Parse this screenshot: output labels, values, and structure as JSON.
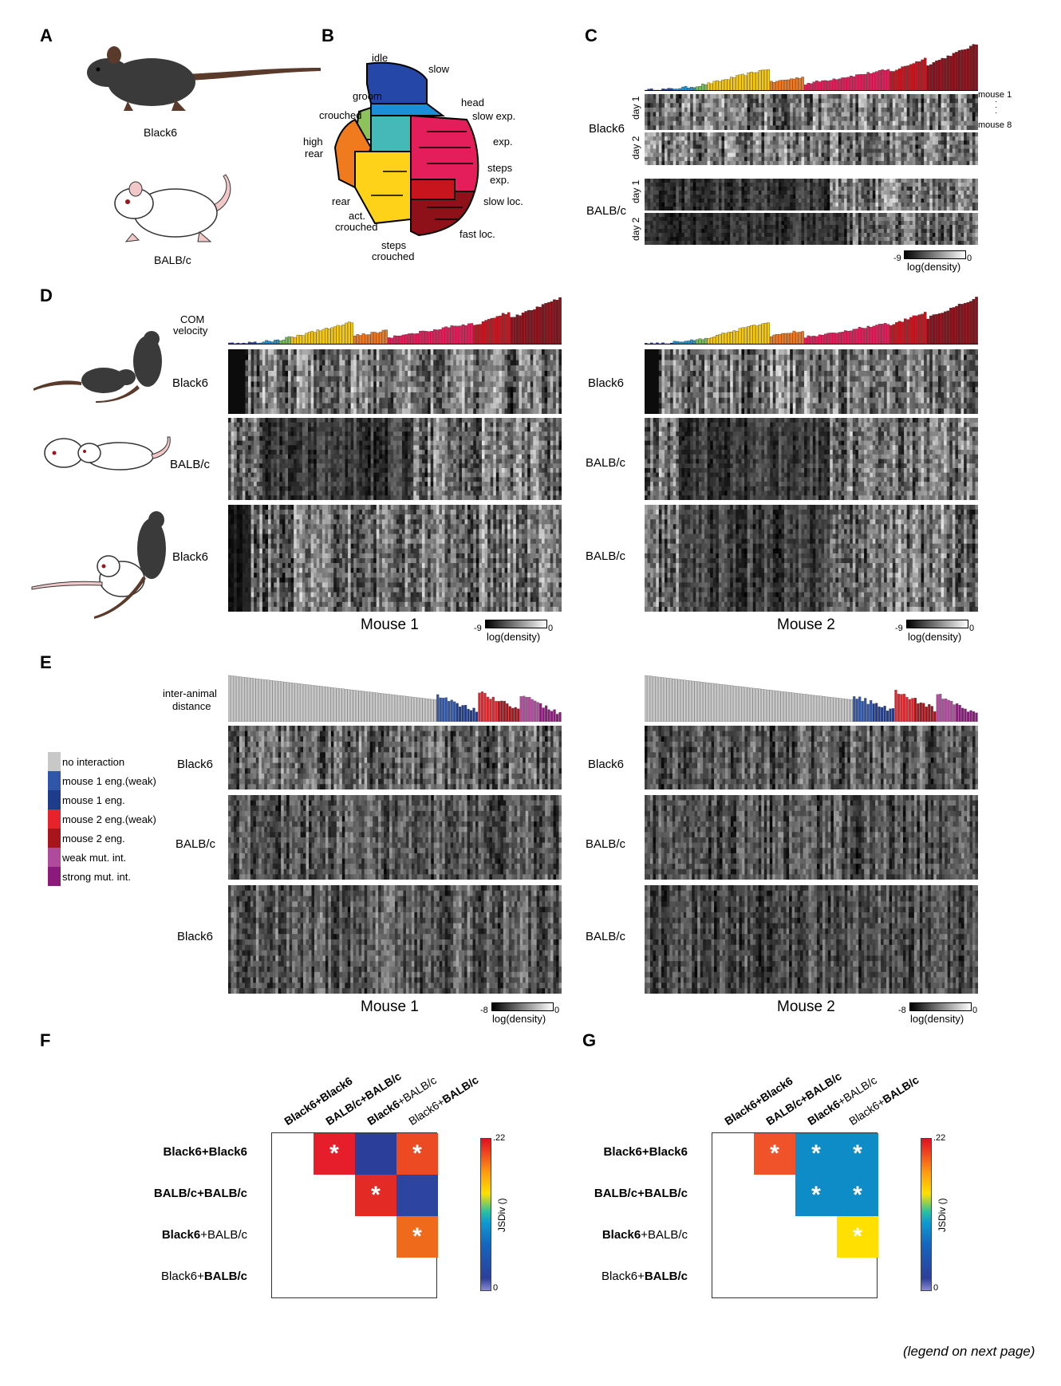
{
  "panels": {
    "A": {
      "letter": "A",
      "top_label": "Black6",
      "bottom_label": "BALB/c"
    },
    "B": {
      "letter": "B",
      "labels": [
        "idle",
        "slow",
        "groom",
        "head",
        "crouched",
        "slow exp.",
        "high",
        "rear",
        "exp.",
        "steps",
        "exp.",
        "slow loc.",
        "rear",
        "act.",
        "crouched",
        "fast loc.",
        "steps",
        "crouched"
      ]
    },
    "C": {
      "letter": "C",
      "strain1": "Black6",
      "strain2": "BALB/c",
      "day1": "day 1",
      "day2": "day 2",
      "mouse_first": "mouse 1",
      "mouse_last": "mouse 8",
      "dots": "·",
      "cbar_min": "-9",
      "cbar_max": "0",
      "cbar_label": "log(density)"
    },
    "D": {
      "letter": "D",
      "com_label_1": "COM",
      "com_label_2": "velocity",
      "rows_left": [
        "Black6",
        "BALB/c",
        "Black6"
      ],
      "rows_right": [
        "Black6",
        "BALB/c",
        "BALB/c"
      ],
      "title_left": "Mouse 1",
      "title_right": "Mouse 2",
      "cbar_min": "-9",
      "cbar_max": "0",
      "cbar_label": "log(density)"
    },
    "E": {
      "letter": "E",
      "dist_label_1": "inter-animal",
      "dist_label_2": "distance",
      "rows_left": [
        "Black6",
        "BALB/c",
        "Black6"
      ],
      "rows_right": [
        "Black6",
        "BALB/c",
        "BALB/c"
      ],
      "title_left": "Mouse 1",
      "title_right": "Mouse 2",
      "cbar_min": "-8",
      "cbar_max": "0",
      "cbar_label": "log(density)",
      "legend": [
        {
          "label": "no interaction",
          "color": "#c8c8c8"
        },
        {
          "label": "mouse 1 eng.(weak)",
          "color": "#2f56a8"
        },
        {
          "label": "mouse 1 eng.",
          "color": "#1f3b8c"
        },
        {
          "label": "mouse 2 eng.(weak)",
          "color": "#e8222a"
        },
        {
          "label": "mouse 2 eng.",
          "color": "#a8141c"
        },
        {
          "label": "weak mut. int.",
          "color": "#b04a9c"
        },
        {
          "label": "strong mut. int.",
          "color": "#8c1a7c"
        }
      ]
    },
    "F": {
      "letter": "F",
      "cbar_max": ".22",
      "cbar_min": "0",
      "cbar_label": "JSDiv ()",
      "cells": [
        {
          "row": 0,
          "col": 1,
          "color": "#e61e2c",
          "star": "*"
        },
        {
          "row": 0,
          "col": 2,
          "color": "#2b3f9a",
          "star": ""
        },
        {
          "row": 0,
          "col": 3,
          "color": "#ec4a22",
          "star": "*"
        },
        {
          "row": 1,
          "col": 2,
          "color": "#e32a24",
          "star": "*"
        },
        {
          "row": 1,
          "col": 3,
          "color": "#2d45a0",
          "star": ""
        },
        {
          "row": 2,
          "col": 3,
          "color": "#f06a1c",
          "star": "*"
        }
      ]
    },
    "G": {
      "letter": "G",
      "cbar_max": ".22",
      "cbar_min": "0",
      "cbar_label": "JSDiv ()",
      "cells": [
        {
          "row": 0,
          "col": 1,
          "color": "#f0522a",
          "star": "*"
        },
        {
          "row": 0,
          "col": 2,
          "color": "#0e8cc8",
          "star": "*"
        },
        {
          "row": 0,
          "col": 3,
          "color": "#0e8cc8",
          "star": "*"
        },
        {
          "row": 1,
          "col": 2,
          "color": "#0e8cc8",
          "star": "*"
        },
        {
          "row": 1,
          "col": 3,
          "color": "#0e8cc8",
          "star": "*"
        },
        {
          "row": 2,
          "col": 3,
          "color": "#ffe000",
          "star": "*"
        }
      ]
    }
  },
  "matrix_labels": {
    "pair1_a": "Black6",
    "pair1_b": "Black6",
    "pair2_a": "BALB/c",
    "pair2_b": "BALB/c",
    "pair3_a": "Black6",
    "pair3_b": "BALB/c",
    "pair4_a": "Black6",
    "pair4_b": "BALB/c",
    "plus": "+"
  },
  "caption": "(legend on next page)"
}
